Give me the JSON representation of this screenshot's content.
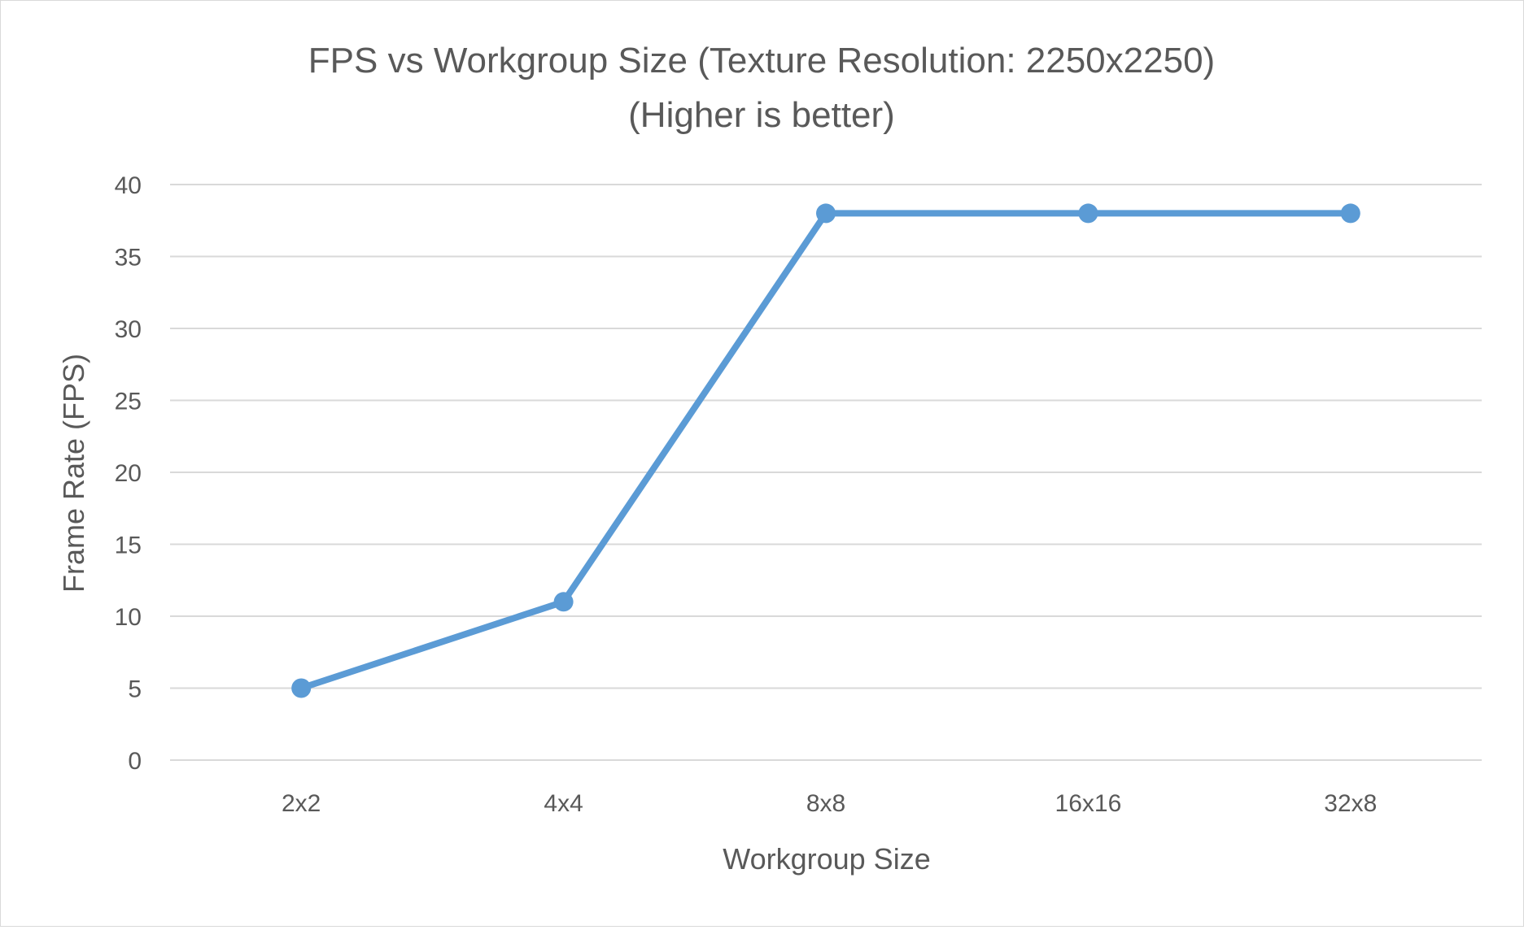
{
  "chart_data": {
    "type": "line",
    "title": "FPS vs Workgroup Size (Texture Resolution: 2250x2250)",
    "subtitle": "(Higher is better)",
    "xlabel": "Workgroup Size",
    "ylabel": "Frame Rate (FPS)",
    "categories": [
      "2x2",
      "4x4",
      "8x8",
      "16x16",
      "32x8"
    ],
    "series": [
      {
        "name": "FPS",
        "values": [
          5,
          11,
          38,
          38,
          38
        ],
        "color": "#5b9bd5"
      }
    ],
    "ylim": [
      0,
      40
    ],
    "yticks": [
      0,
      5,
      10,
      15,
      20,
      25,
      30,
      35,
      40
    ],
    "ytick_labels": [
      "0",
      "5",
      "10",
      "15",
      "20",
      "25",
      "30",
      "35",
      "40"
    ],
    "grid": true,
    "legend": "none"
  }
}
